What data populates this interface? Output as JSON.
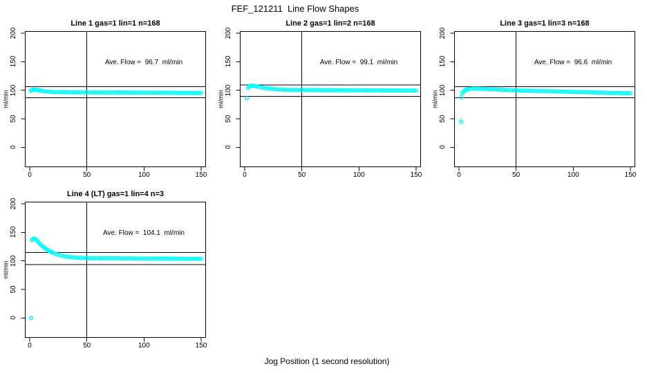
{
  "figure": {
    "title": "FEF_121211  Line Flow Shapes",
    "xlabel": "Jog Position (1 second resolution)"
  },
  "chart_data": [
    {
      "type": "scatter",
      "title": "Line 1 gas=1 lin=1 n=168",
      "annotation": "Ave. Flow =  96.7  ml/min",
      "ave_flow_ml_min": 96.7,
      "n": 168,
      "ylabel": "ml/min",
      "xticks": [
        0,
        50,
        100,
        150
      ],
      "yticks": [
        0,
        50,
        100,
        150,
        200
      ],
      "xlim": [
        -4,
        154
      ],
      "ylim": [
        -35,
        204
      ],
      "vline_x": 50,
      "hlines": [
        106.4,
        87.0
      ],
      "marker_color": "#00FFFF",
      "points": [
        [
          1,
          99.0
        ],
        [
          2,
          100.2
        ],
        [
          3,
          100.8
        ],
        [
          4,
          101.0
        ],
        [
          5,
          101.0
        ],
        [
          6,
          100.6
        ],
        [
          7,
          100.2
        ],
        [
          8,
          99.8
        ],
        [
          9,
          99.5
        ],
        [
          10,
          99.2
        ],
        [
          12,
          98.5
        ],
        [
          14,
          98.0
        ],
        [
          16,
          97.6
        ],
        [
          18,
          97.3
        ],
        [
          20,
          97.0
        ],
        [
          22,
          96.8
        ],
        [
          24,
          96.7
        ],
        [
          26,
          96.6
        ],
        [
          28,
          96.5
        ],
        [
          30,
          96.4
        ],
        [
          32,
          96.4
        ],
        [
          34,
          96.4
        ],
        [
          36,
          96.3
        ],
        [
          38,
          96.3
        ],
        [
          40,
          96.3
        ],
        [
          42,
          96.3
        ],
        [
          44,
          96.3
        ],
        [
          46,
          96.2
        ],
        [
          48,
          96.2
        ],
        [
          50,
          96.2
        ],
        [
          52,
          96.2
        ],
        [
          54,
          96.2
        ],
        [
          56,
          96.1
        ],
        [
          58,
          96.1
        ],
        [
          60,
          96.1
        ],
        [
          62,
          96.1
        ],
        [
          64,
          96.1
        ],
        [
          66,
          96.0
        ],
        [
          68,
          96.0
        ],
        [
          70,
          96.0
        ],
        [
          72,
          96.0
        ],
        [
          74,
          96.0
        ],
        [
          76,
          95.9
        ],
        [
          78,
          95.9
        ],
        [
          80,
          95.9
        ],
        [
          82,
          95.9
        ],
        [
          84,
          95.9
        ],
        [
          86,
          95.8
        ],
        [
          88,
          95.8
        ],
        [
          90,
          95.8
        ],
        [
          92,
          95.8
        ],
        [
          94,
          95.8
        ],
        [
          96,
          95.7
        ],
        [
          98,
          95.7
        ],
        [
          100,
          95.7
        ],
        [
          102,
          95.7
        ],
        [
          104,
          95.7
        ],
        [
          106,
          95.6
        ],
        [
          108,
          95.6
        ],
        [
          110,
          95.6
        ],
        [
          112,
          95.6
        ],
        [
          114,
          95.6
        ],
        [
          116,
          95.5
        ],
        [
          118,
          95.5
        ],
        [
          120,
          95.5
        ],
        [
          122,
          95.5
        ],
        [
          124,
          95.5
        ],
        [
          126,
          95.4
        ],
        [
          128,
          95.4
        ],
        [
          130,
          95.4
        ],
        [
          132,
          95.4
        ],
        [
          134,
          95.4
        ],
        [
          136,
          95.3
        ],
        [
          138,
          95.3
        ],
        [
          140,
          95.3
        ],
        [
          142,
          95.3
        ],
        [
          144,
          95.3
        ],
        [
          146,
          95.2
        ],
        [
          148,
          95.2
        ],
        [
          150,
          95.2
        ]
      ]
    },
    {
      "type": "scatter",
      "title": "Line 2 gas=1 lin=2 n=168",
      "annotation": "Ave. Flow =  99.1  ml/min",
      "ave_flow_ml_min": 99.1,
      "n": 168,
      "ylabel": "ml/min",
      "xticks": [
        0,
        50,
        100,
        150
      ],
      "yticks": [
        0,
        50,
        100,
        150,
        200
      ],
      "xlim": [
        -4,
        154
      ],
      "ylim": [
        -35,
        204
      ],
      "vline_x": 50,
      "hlines": [
        109.0,
        89.2
      ],
      "marker_color": "#00FFFF",
      "points": [
        [
          2,
          86.0
        ],
        [
          3,
          104.0
        ],
        [
          4,
          106.5
        ],
        [
          5,
          107.8
        ],
        [
          6,
          108.0
        ],
        [
          7,
          107.9
        ],
        [
          8,
          107.6
        ],
        [
          9,
          107.2
        ],
        [
          10,
          106.8
        ],
        [
          12,
          106.0
        ],
        [
          14,
          105.2
        ],
        [
          16,
          104.5
        ],
        [
          18,
          103.8
        ],
        [
          20,
          103.2
        ],
        [
          22,
          102.7
        ],
        [
          24,
          102.3
        ],
        [
          26,
          101.9
        ],
        [
          28,
          101.6
        ],
        [
          30,
          101.3
        ],
        [
          32,
          101.1
        ],
        [
          34,
          100.9
        ],
        [
          36,
          100.7
        ],
        [
          38,
          100.6
        ],
        [
          40,
          100.5
        ],
        [
          42,
          100.5
        ],
        [
          44,
          100.5
        ],
        [
          46,
          100.4
        ],
        [
          48,
          100.4
        ],
        [
          50,
          100.4
        ],
        [
          52,
          100.4
        ],
        [
          54,
          100.4
        ],
        [
          56,
          100.3
        ],
        [
          58,
          100.3
        ],
        [
          60,
          100.3
        ],
        [
          62,
          100.3
        ],
        [
          64,
          100.3
        ],
        [
          66,
          100.2
        ],
        [
          68,
          100.2
        ],
        [
          70,
          100.2
        ],
        [
          72,
          100.2
        ],
        [
          74,
          100.2
        ],
        [
          76,
          100.1
        ],
        [
          78,
          100.1
        ],
        [
          80,
          100.1
        ],
        [
          82,
          100.1
        ],
        [
          84,
          100.1
        ],
        [
          86,
          100.0
        ],
        [
          88,
          100.0
        ],
        [
          90,
          100.0
        ],
        [
          92,
          100.0
        ],
        [
          94,
          100.0
        ],
        [
          96,
          99.9
        ],
        [
          98,
          99.9
        ],
        [
          100,
          99.9
        ],
        [
          102,
          99.9
        ],
        [
          104,
          99.9
        ],
        [
          106,
          99.8
        ],
        [
          108,
          99.8
        ],
        [
          110,
          99.8
        ],
        [
          112,
          99.8
        ],
        [
          114,
          99.8
        ],
        [
          116,
          99.7
        ],
        [
          118,
          99.7
        ],
        [
          120,
          99.7
        ],
        [
          122,
          99.7
        ],
        [
          124,
          99.7
        ],
        [
          126,
          99.6
        ],
        [
          128,
          99.6
        ],
        [
          130,
          99.6
        ],
        [
          132,
          99.6
        ],
        [
          134,
          99.6
        ],
        [
          136,
          99.6
        ],
        [
          138,
          99.5
        ],
        [
          140,
          99.5
        ],
        [
          142,
          99.5
        ],
        [
          144,
          99.5
        ],
        [
          146,
          99.5
        ],
        [
          148,
          99.4
        ],
        [
          150,
          99.4
        ]
      ]
    },
    {
      "type": "scatter",
      "title": "Line 3 gas=1 lin=3 n=168",
      "annotation": "Ave. Flow =  96.6  ml/min",
      "ave_flow_ml_min": 96.6,
      "n": 168,
      "ylabel": "ml/min",
      "xticks": [
        0,
        50,
        100,
        150
      ],
      "yticks": [
        0,
        50,
        100,
        150,
        200
      ],
      "xlim": [
        -4,
        154
      ],
      "ylim": [
        -35,
        204
      ],
      "vline_x": 50,
      "hlines": [
        106.3,
        86.9
      ],
      "marker_color": "#00FFFF",
      "points": [
        [
          2,
          88.0
        ],
        [
          2,
          45.0
        ],
        [
          3,
          95.5
        ],
        [
          4,
          98.0
        ],
        [
          5,
          99.5
        ],
        [
          6,
          100.5
        ],
        [
          7,
          101.2
        ],
        [
          8,
          101.8
        ],
        [
          10,
          102.4
        ],
        [
          12,
          102.7
        ],
        [
          14,
          102.8
        ],
        [
          16,
          102.8
        ],
        [
          18,
          102.7
        ],
        [
          20,
          102.5
        ],
        [
          22,
          102.3
        ],
        [
          24,
          102.2
        ],
        [
          26,
          102.0
        ],
        [
          28,
          101.8
        ],
        [
          30,
          101.6
        ],
        [
          32,
          101.4
        ],
        [
          34,
          101.2
        ],
        [
          36,
          101.0
        ],
        [
          38,
          100.8
        ],
        [
          40,
          100.6
        ],
        [
          42,
          100.4
        ],
        [
          44,
          100.2
        ],
        [
          46,
          100.0
        ],
        [
          48,
          99.8
        ],
        [
          50,
          99.6
        ],
        [
          52,
          99.5
        ],
        [
          54,
          99.4
        ],
        [
          56,
          99.3
        ],
        [
          58,
          99.2
        ],
        [
          60,
          99.1
        ],
        [
          62,
          99.0
        ],
        [
          64,
          98.9
        ],
        [
          66,
          98.8
        ],
        [
          68,
          98.7
        ],
        [
          70,
          98.6
        ],
        [
          72,
          98.5
        ],
        [
          74,
          98.4
        ],
        [
          76,
          98.3
        ],
        [
          78,
          98.2
        ],
        [
          80,
          98.1
        ],
        [
          82,
          98.0
        ],
        [
          84,
          97.9
        ],
        [
          86,
          97.8
        ],
        [
          88,
          97.7
        ],
        [
          90,
          97.6
        ],
        [
          92,
          97.4
        ],
        [
          94,
          97.3
        ],
        [
          96,
          97.2
        ],
        [
          98,
          97.1
        ],
        [
          100,
          97.0
        ],
        [
          102,
          96.9
        ],
        [
          104,
          96.8
        ],
        [
          106,
          96.7
        ],
        [
          108,
          96.6
        ],
        [
          110,
          96.5
        ],
        [
          112,
          96.4
        ],
        [
          114,
          96.3
        ],
        [
          116,
          96.2
        ],
        [
          118,
          96.1
        ],
        [
          120,
          96.0
        ],
        [
          122,
          95.9
        ],
        [
          124,
          95.8
        ],
        [
          126,
          95.7
        ],
        [
          128,
          95.6
        ],
        [
          130,
          95.5
        ],
        [
          132,
          95.4
        ],
        [
          134,
          95.3
        ],
        [
          136,
          95.2
        ],
        [
          138,
          95.1
        ],
        [
          140,
          95.1
        ],
        [
          142,
          95.0
        ],
        [
          144,
          94.9
        ],
        [
          146,
          94.9
        ],
        [
          148,
          94.8
        ],
        [
          150,
          94.8
        ]
      ]
    },
    {
      "type": "scatter",
      "title": "Line 4 (LT) gas=1 lin=4 n=3",
      "annotation": "Ave. Flow =  104.1  ml/min",
      "ave_flow_ml_min": 104.1,
      "n": 3,
      "ylabel": "ml/min",
      "xticks": [
        0,
        50,
        100,
        150
      ],
      "yticks": [
        0,
        50,
        100,
        150,
        200
      ],
      "xlim": [
        -4,
        154
      ],
      "ylim": [
        -35,
        204
      ],
      "vline_x": 50,
      "hlines": [
        114.5,
        93.7
      ],
      "marker_color": "#00FFFF",
      "points": [
        [
          1,
          0.0
        ],
        [
          2,
          136.5
        ],
        [
          3,
          138.5
        ],
        [
          4,
          139.0
        ],
        [
          5,
          138.0
        ],
        [
          6,
          136.0
        ],
        [
          7,
          133.8
        ],
        [
          8,
          131.7
        ],
        [
          9,
          129.7
        ],
        [
          10,
          127.8
        ],
        [
          11,
          126.0
        ],
        [
          12,
          124.3
        ],
        [
          13,
          122.7
        ],
        [
          14,
          121.2
        ],
        [
          15,
          119.8
        ],
        [
          16,
          118.5
        ],
        [
          17,
          117.3
        ],
        [
          18,
          116.2
        ],
        [
          19,
          115.2
        ],
        [
          20,
          114.3
        ],
        [
          22,
          112.7
        ],
        [
          24,
          111.3
        ],
        [
          26,
          110.1
        ],
        [
          28,
          109.1
        ],
        [
          30,
          108.2
        ],
        [
          32,
          107.5
        ],
        [
          34,
          106.9
        ],
        [
          36,
          106.4
        ],
        [
          38,
          106.0
        ],
        [
          40,
          105.7
        ],
        [
          42,
          105.4
        ],
        [
          44,
          105.2
        ],
        [
          46,
          105.0
        ],
        [
          48,
          104.9
        ],
        [
          50,
          104.8
        ],
        [
          52,
          104.7
        ],
        [
          54,
          104.7
        ],
        [
          56,
          104.7
        ],
        [
          58,
          104.6
        ],
        [
          60,
          104.6
        ],
        [
          62,
          104.6
        ],
        [
          64,
          104.5
        ],
        [
          66,
          104.5
        ],
        [
          68,
          104.5
        ],
        [
          70,
          104.5
        ],
        [
          72,
          104.4
        ],
        [
          74,
          104.4
        ],
        [
          76,
          104.4
        ],
        [
          78,
          104.4
        ],
        [
          80,
          104.3
        ],
        [
          82,
          104.3
        ],
        [
          84,
          104.3
        ],
        [
          86,
          104.3
        ],
        [
          88,
          104.2
        ],
        [
          90,
          104.2
        ],
        [
          92,
          104.2
        ],
        [
          94,
          104.2
        ],
        [
          96,
          104.1
        ],
        [
          98,
          104.1
        ],
        [
          100,
          104.1
        ],
        [
          102,
          104.1
        ],
        [
          104,
          104.0
        ],
        [
          106,
          104.0
        ],
        [
          108,
          104.0
        ],
        [
          110,
          104.0
        ],
        [
          112,
          103.9
        ],
        [
          114,
          103.9
        ],
        [
          116,
          103.9
        ],
        [
          118,
          103.9
        ],
        [
          120,
          103.9
        ],
        [
          122,
          103.8
        ],
        [
          124,
          103.8
        ],
        [
          126,
          103.8
        ],
        [
          128,
          103.8
        ],
        [
          130,
          103.7
        ],
        [
          132,
          103.7
        ],
        [
          134,
          103.7
        ],
        [
          136,
          103.7
        ],
        [
          138,
          103.7
        ],
        [
          140,
          103.6
        ],
        [
          142,
          103.6
        ],
        [
          144,
          103.6
        ],
        [
          146,
          103.6
        ],
        [
          148,
          103.5
        ],
        [
          150,
          103.5
        ]
      ]
    }
  ]
}
